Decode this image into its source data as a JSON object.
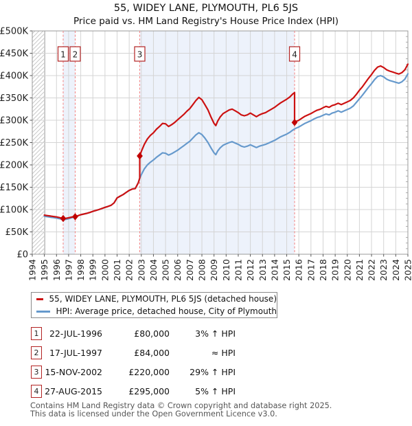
{
  "chart_data": {
    "type": "line",
    "title": "55, WIDEY LANE, PLYMOUTH, PL6 5JS",
    "subtitle": "Price paid vs. HM Land Registry's House Price Index (HPI)",
    "values_unit": "GBP thousands",
    "xlim": [
      1994,
      2025
    ],
    "ylim": [
      0,
      500
    ],
    "x_ticks": [
      1994,
      1995,
      1996,
      1997,
      1998,
      1999,
      2000,
      2001,
      2002,
      2003,
      2004,
      2005,
      2006,
      2007,
      2008,
      2009,
      2010,
      2011,
      2012,
      2013,
      2014,
      2015,
      2016,
      2017,
      2018,
      2019,
      2020,
      2021,
      2022,
      2023,
      2024,
      2025
    ],
    "y_ticks": [
      {
        "v": 0,
        "label": "£0"
      },
      {
        "v": 50,
        "label": "£50K"
      },
      {
        "v": 100,
        "label": "£100K"
      },
      {
        "v": 150,
        "label": "£150K"
      },
      {
        "v": 200,
        "label": "£200K"
      },
      {
        "v": 250,
        "label": "£250K"
      },
      {
        "v": 300,
        "label": "£300K"
      },
      {
        "v": 350,
        "label": "£350K"
      },
      {
        "v": 400,
        "label": "£400K"
      },
      {
        "v": 450,
        "label": "£450K"
      },
      {
        "v": 500,
        "label": "£500K"
      }
    ],
    "no_data_band": [
      1994,
      1995.04
    ],
    "ownership_bands": [
      [
        1996.55,
        1997.54
      ],
      [
        2002.87,
        2015.65
      ]
    ],
    "band_color": "#edf2fb",
    "vline_color": "#f28080",
    "series": [
      {
        "name": "55, WIDEY LANE, PLYMOUTH, PL6 5JS (detached house)",
        "color": "#cc1111",
        "points": [
          [
            1995,
            87.5
          ],
          [
            1995.25,
            86.5
          ],
          [
            1995.5,
            85.5
          ],
          [
            1995.75,
            84.5
          ],
          [
            1996,
            83.5
          ],
          [
            1996.25,
            82
          ],
          [
            1996.55,
            80
          ],
          [
            1996.75,
            80.3
          ],
          [
            1997,
            81.6
          ],
          [
            1997.25,
            83.3
          ],
          [
            1997.54,
            84
          ],
          [
            1997.75,
            86
          ],
          [
            1998,
            88.5
          ],
          [
            1998.25,
            90
          ],
          [
            1998.5,
            91.5
          ],
          [
            1998.75,
            93.5
          ],
          [
            1999,
            96
          ],
          [
            1999.25,
            98
          ],
          [
            1999.5,
            100
          ],
          [
            1999.75,
            102.5
          ],
          [
            2000,
            105
          ],
          [
            2000.25,
            107
          ],
          [
            2000.5,
            109.5
          ],
          [
            2000.75,
            115
          ],
          [
            2001,
            126
          ],
          [
            2001.25,
            130
          ],
          [
            2001.5,
            133.5
          ],
          [
            2001.75,
            138.5
          ],
          [
            2002,
            143
          ],
          [
            2002.25,
            146
          ],
          [
            2002.5,
            147
          ],
          [
            2002.75,
            160
          ],
          [
            2002.87,
            170.5
          ],
          [
            2002.87,
            220
          ],
          [
            2003,
            230
          ],
          [
            2003.25,
            246
          ],
          [
            2003.5,
            258
          ],
          [
            2003.75,
            266
          ],
          [
            2004,
            272
          ],
          [
            2004.25,
            280
          ],
          [
            2004.5,
            286
          ],
          [
            2004.75,
            293
          ],
          [
            2005,
            292
          ],
          [
            2005.25,
            286
          ],
          [
            2005.5,
            290
          ],
          [
            2005.75,
            295
          ],
          [
            2006,
            301
          ],
          [
            2006.25,
            307
          ],
          [
            2006.5,
            313
          ],
          [
            2006.75,
            320
          ],
          [
            2007,
            326
          ],
          [
            2007.25,
            335
          ],
          [
            2007.5,
            344
          ],
          [
            2007.75,
            351
          ],
          [
            2008,
            346
          ],
          [
            2008.25,
            335
          ],
          [
            2008.5,
            323
          ],
          [
            2008.75,
            307
          ],
          [
            2009,
            293
          ],
          [
            2009.15,
            288
          ],
          [
            2009.3,
            298
          ],
          [
            2009.5,
            307
          ],
          [
            2009.75,
            315
          ],
          [
            2010,
            319
          ],
          [
            2010.25,
            323
          ],
          [
            2010.5,
            325
          ],
          [
            2010.75,
            321
          ],
          [
            2011,
            317
          ],
          [
            2011.25,
            312
          ],
          [
            2011.5,
            310
          ],
          [
            2011.75,
            312
          ],
          [
            2012,
            316
          ],
          [
            2012.25,
            312
          ],
          [
            2012.5,
            308
          ],
          [
            2012.75,
            312
          ],
          [
            2013,
            315
          ],
          [
            2013.25,
            317
          ],
          [
            2013.5,
            321
          ],
          [
            2013.75,
            325
          ],
          [
            2014,
            329
          ],
          [
            2014.25,
            334
          ],
          [
            2014.5,
            339
          ],
          [
            2014.75,
            343
          ],
          [
            2015,
            347
          ],
          [
            2015.25,
            352
          ],
          [
            2015.5,
            359
          ],
          [
            2015.65,
            362
          ],
          [
            2015.65,
            295
          ],
          [
            2015.75,
            297
          ],
          [
            2016,
            300
          ],
          [
            2016.25,
            304.5
          ],
          [
            2016.5,
            309
          ],
          [
            2016.75,
            312
          ],
          [
            2017,
            315
          ],
          [
            2017.25,
            319
          ],
          [
            2017.5,
            322.5
          ],
          [
            2017.75,
            324.5
          ],
          [
            2018,
            328
          ],
          [
            2018.25,
            331
          ],
          [
            2018.5,
            329
          ],
          [
            2018.75,
            333
          ],
          [
            2019,
            335
          ],
          [
            2019.25,
            338
          ],
          [
            2019.5,
            335
          ],
          [
            2019.75,
            338
          ],
          [
            2020,
            341
          ],
          [
            2020.25,
            344.5
          ],
          [
            2020.5,
            350
          ],
          [
            2020.75,
            358
          ],
          [
            2021,
            367
          ],
          [
            2021.25,
            375
          ],
          [
            2021.5,
            384.5
          ],
          [
            2021.75,
            394
          ],
          [
            2022,
            402.5
          ],
          [
            2022.25,
            412
          ],
          [
            2022.5,
            419
          ],
          [
            2022.75,
            421.5
          ],
          [
            2023,
            418
          ],
          [
            2023.25,
            413
          ],
          [
            2023.5,
            410
          ],
          [
            2023.75,
            408
          ],
          [
            2024,
            405.5
          ],
          [
            2024.25,
            403.5
          ],
          [
            2024.5,
            406.5
          ],
          [
            2024.75,
            413
          ],
          [
            2025,
            425.5
          ]
        ]
      },
      {
        "name": "HPI: Average price, detached house, City of Plymouth",
        "color": "#6699cc",
        "points": [
          [
            1995,
            85
          ],
          [
            1995.25,
            84
          ],
          [
            1995.5,
            83
          ],
          [
            1995.75,
            82
          ],
          [
            1996,
            81
          ],
          [
            1996.25,
            79.5
          ],
          [
            1996.55,
            77.7
          ],
          [
            1996.75,
            78
          ],
          [
            1997,
            79.5
          ],
          [
            1997.25,
            81.5
          ],
          [
            1997.54,
            84
          ],
          [
            1997.75,
            86
          ],
          [
            1998,
            88.5
          ],
          [
            1998.25,
            90
          ],
          [
            1998.5,
            91.5
          ],
          [
            1998.75,
            93.5
          ],
          [
            1999,
            96
          ],
          [
            1999.25,
            98
          ],
          [
            1999.5,
            100
          ],
          [
            1999.75,
            102.5
          ],
          [
            2000,
            105
          ],
          [
            2000.25,
            107
          ],
          [
            2000.5,
            109.5
          ],
          [
            2000.75,
            115
          ],
          [
            2001,
            126
          ],
          [
            2001.25,
            130
          ],
          [
            2001.5,
            133.5
          ],
          [
            2001.75,
            138.5
          ],
          [
            2002,
            143
          ],
          [
            2002.25,
            146
          ],
          [
            2002.5,
            147
          ],
          [
            2002.75,
            160
          ],
          [
            2002.87,
            170.5
          ],
          [
            2003,
            178
          ],
          [
            2003.25,
            191
          ],
          [
            2003.5,
            200
          ],
          [
            2003.75,
            206
          ],
          [
            2004,
            211
          ],
          [
            2004.25,
            217
          ],
          [
            2004.5,
            222
          ],
          [
            2004.75,
            227
          ],
          [
            2005,
            226
          ],
          [
            2005.25,
            222
          ],
          [
            2005.5,
            225
          ],
          [
            2005.75,
            229
          ],
          [
            2006,
            233
          ],
          [
            2006.25,
            238
          ],
          [
            2006.5,
            243
          ],
          [
            2006.75,
            248
          ],
          [
            2007,
            253
          ],
          [
            2007.25,
            260
          ],
          [
            2007.5,
            267
          ],
          [
            2007.75,
            272
          ],
          [
            2008,
            268
          ],
          [
            2008.25,
            260
          ],
          [
            2008.5,
            250
          ],
          [
            2008.75,
            238
          ],
          [
            2009,
            227
          ],
          [
            2009.15,
            223
          ],
          [
            2009.3,
            231
          ],
          [
            2009.5,
            238
          ],
          [
            2009.75,
            244
          ],
          [
            2010,
            247
          ],
          [
            2010.25,
            250
          ],
          [
            2010.5,
            252
          ],
          [
            2010.75,
            249
          ],
          [
            2011,
            246
          ],
          [
            2011.25,
            242
          ],
          [
            2011.5,
            240
          ],
          [
            2011.75,
            242
          ],
          [
            2012,
            245
          ],
          [
            2012.25,
            242
          ],
          [
            2012.5,
            239
          ],
          [
            2012.75,
            242
          ],
          [
            2013,
            244
          ],
          [
            2013.25,
            246
          ],
          [
            2013.5,
            249
          ],
          [
            2013.75,
            252
          ],
          [
            2014,
            255
          ],
          [
            2014.25,
            259
          ],
          [
            2014.5,
            263
          ],
          [
            2014.75,
            266
          ],
          [
            2015,
            269
          ],
          [
            2015.25,
            273
          ],
          [
            2015.5,
            278
          ],
          [
            2015.65,
            280.5
          ],
          [
            2015.75,
            282
          ],
          [
            2016,
            285
          ],
          [
            2016.25,
            289
          ],
          [
            2016.5,
            293
          ],
          [
            2016.75,
            296
          ],
          [
            2017,
            299
          ],
          [
            2017.25,
            303
          ],
          [
            2017.5,
            306
          ],
          [
            2017.75,
            308
          ],
          [
            2018,
            311
          ],
          [
            2018.25,
            314
          ],
          [
            2018.5,
            312
          ],
          [
            2018.75,
            316
          ],
          [
            2019,
            318
          ],
          [
            2019.25,
            321
          ],
          [
            2019.5,
            318
          ],
          [
            2019.75,
            321
          ],
          [
            2020,
            324
          ],
          [
            2020.25,
            327
          ],
          [
            2020.5,
            332
          ],
          [
            2020.75,
            340
          ],
          [
            2021,
            348
          ],
          [
            2021.25,
            356
          ],
          [
            2021.5,
            365
          ],
          [
            2021.75,
            374
          ],
          [
            2022,
            382
          ],
          [
            2022.25,
            391
          ],
          [
            2022.5,
            398
          ],
          [
            2022.75,
            400
          ],
          [
            2023,
            397
          ],
          [
            2023.25,
            392
          ],
          [
            2023.5,
            389
          ],
          [
            2023.75,
            387
          ],
          [
            2024,
            385
          ],
          [
            2024.25,
            383
          ],
          [
            2024.5,
            386
          ],
          [
            2024.75,
            392
          ],
          [
            2025,
            404
          ]
        ]
      }
    ],
    "sales": [
      {
        "num": "1",
        "x": 1996.55,
        "y": 80,
        "date": "22-JUL-1996",
        "price": "£80,000",
        "delta": "3% ↑ HPI"
      },
      {
        "num": "2",
        "x": 1997.54,
        "y": 84,
        "date": "17-JUL-1997",
        "price": "£84,000",
        "delta": "≈ HPI"
      },
      {
        "num": "3",
        "x": 2002.87,
        "y": 220,
        "date": "15-NOV-2002",
        "price": "£220,000",
        "delta": "29% ↑ HPI"
      },
      {
        "num": "4",
        "x": 2015.65,
        "y": 295,
        "date": "27-AUG-2015",
        "price": "£295,000",
        "delta": "5% ↑ HPI"
      }
    ],
    "legend_position": "below-left",
    "grid": true
  },
  "legend": {
    "items": [
      {
        "label": "55, WIDEY LANE, PLYMOUTH, PL6 5JS (detached house)",
        "color": "#cc1111"
      },
      {
        "label": "HPI: Average price, detached house, City of Plymouth",
        "color": "#6699cc"
      }
    ]
  },
  "footer": {
    "line1": "Contains HM Land Registry data © Crown copyright and database right 2025.",
    "line2": "This data is licensed under the Open Government Licence v3.0."
  }
}
